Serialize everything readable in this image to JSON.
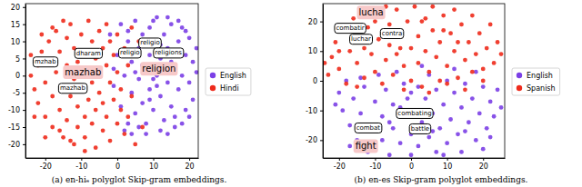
{
  "chart_data": [
    {
      "type": "scatter",
      "title": "(a) en-hiₑ polyglot Skip-gram embeddings.",
      "legend": "right",
      "xlim": [
        -25.5,
        22.5
      ],
      "xticks": [
        -20,
        -10,
        0,
        10,
        20
      ],
      "ylim": [
        -24,
        21
      ],
      "yticks": [
        -20,
        -15,
        -10,
        -5,
        0,
        5,
        10,
        15,
        20
      ],
      "series": [
        {
          "name": "English",
          "color": "#7b3fe6",
          "x": [
            -2,
            -1,
            0,
            1,
            1,
            2,
            3,
            3,
            4,
            4,
            5,
            5,
            6,
            6,
            7,
            7,
            8,
            8,
            9,
            9,
            9,
            10,
            10,
            11,
            11,
            12,
            12,
            13,
            13,
            14,
            14,
            15,
            15,
            16,
            16,
            17,
            17,
            18,
            18,
            19,
            19,
            20,
            20,
            21,
            21,
            22,
            8,
            12,
            16,
            18,
            2,
            6,
            10,
            14,
            3,
            20,
            13,
            10,
            15,
            7,
            17,
            19,
            -1,
            5,
            11,
            22,
            4,
            14,
            9,
            12
          ],
          "values": [
            12,
            -3,
            6,
            15,
            -9,
            0,
            10,
            -14,
            4,
            -5,
            16,
            -11,
            8,
            -1,
            12,
            -8,
            2,
            -14,
            14,
            6,
            -4,
            -10,
            10,
            0,
            17,
            -6,
            5,
            -13,
            12,
            -2,
            8,
            15,
            -9,
            3,
            -15,
            10,
            -4,
            0,
            14,
            -10,
            6,
            -2,
            11,
            4,
            -7,
            1,
            -17,
            -16,
            -12,
            -14,
            -16,
            -15,
            16,
            17,
            13,
            -12,
            1,
            -1,
            4,
            3,
            16,
            13,
            2,
            1,
            -3,
            8,
            -17,
            -17,
            -7,
            9
          ]
        },
        {
          "name": "Hindi",
          "color": "#ee2a1b",
          "x": [
            -24,
            -23,
            -22,
            -22,
            -21,
            -20,
            -20,
            -19,
            -19,
            -18,
            -18,
            -17,
            -17,
            -16,
            -16,
            -15,
            -15,
            -14,
            -14,
            -14,
            -13,
            -13,
            -12,
            -12,
            -12,
            -11,
            -11,
            -11,
            -10,
            -10,
            -10,
            -9,
            -9,
            -9,
            -8,
            -8,
            -8,
            -7,
            -7,
            -7,
            -6,
            -6,
            -6,
            -5,
            -5,
            -5,
            -4,
            -4,
            -4,
            -3,
            -3,
            -3,
            -2,
            -2,
            -2,
            -1,
            -1,
            0,
            0,
            0,
            1,
            1,
            2,
            2,
            3,
            3,
            4,
            4,
            5,
            6,
            -23,
            -21,
            -16,
            -13,
            -18,
            -9,
            -20,
            -24,
            7,
            -15
          ],
          "values": [
            0,
            -4,
            3,
            -8,
            7,
            -2,
            -12,
            4,
            10,
            -6,
            -15,
            1,
            13,
            -10,
            7,
            -3,
            -18,
            11,
            3,
            -13,
            -6,
            15,
            -1,
            -20,
            8,
            -9,
            4,
            -15,
            12,
            -4,
            0,
            -12,
            6,
            -18,
            16,
            -7,
            2,
            10,
            -2,
            -14,
            5,
            -10,
            -21,
            13,
            -5,
            1,
            8,
            -16,
            -8,
            15,
            3,
            -12,
            -2,
            10,
            -19,
            6,
            -7,
            -14,
            12,
            1,
            -4,
            -10,
            8,
            -17,
            3,
            -12,
            14,
            -6,
            -20,
            10,
            -12,
            12,
            -16,
            -19,
            14,
            -22,
            -18,
            6,
            -15,
            16
          ]
        }
      ],
      "annotations": [
        {
          "text": "mzhab",
          "x": -20,
          "y": 4
        },
        {
          "text": "dharam",
          "x": -8,
          "y": 6.5
        },
        {
          "text": "mazhab",
          "x": -9.5,
          "y": 1,
          "color": "#f7c9c9"
        },
        {
          "text": "mazhab",
          "x": -12.4,
          "y": -3.7
        },
        {
          "text": "religio",
          "x": 9.1,
          "y": 9.5
        },
        {
          "text": "religio",
          "x": 3.5,
          "y": 6.6
        },
        {
          "text": "religions",
          "x": 14.2,
          "y": 6.6
        },
        {
          "text": "religion",
          "x": 11.6,
          "y": 2,
          "color": "#f7c9c9"
        }
      ]
    },
    {
      "type": "scatter",
      "title": "(b) en-es Skip-gram polyglot embeddings.",
      "legend": "right",
      "xlim": [
        -24.5,
        26
      ],
      "xticks": [
        -20,
        -10,
        0,
        10,
        20
      ],
      "ylim": [
        -26,
        26
      ],
      "yticks": [
        -20,
        -10,
        0,
        10,
        20
      ],
      "series": [
        {
          "name": "English",
          "color": "#7b3fe6",
          "x": [
            -20,
            -19,
            -18,
            -17,
            -16,
            -15,
            -14,
            -13,
            -12,
            -11,
            -10,
            -9,
            -8,
            -8,
            -7,
            -6,
            -5,
            -5,
            -4,
            -3,
            -2,
            -2,
            -1,
            0,
            0,
            1,
            2,
            2,
            3,
            4,
            5,
            5,
            6,
            7,
            7,
            8,
            9,
            10,
            10,
            11,
            12,
            13,
            14,
            14,
            15,
            16,
            17,
            18,
            19,
            20,
            21,
            22,
            23,
            24,
            25,
            -17,
            -21,
            3,
            12,
            18,
            -11,
            6,
            -6,
            20,
            0,
            9,
            -14,
            15,
            22,
            -3
          ],
          "values": [
            -4,
            -10,
            0,
            -15,
            -6,
            -20,
            -11,
            -2,
            -24,
            -16,
            -7,
            2,
            -20,
            -12,
            -3,
            -25,
            -16,
            -8,
            3,
            -21,
            -12,
            -1,
            -6,
            -18,
            -25,
            -10,
            -2,
            -22,
            -14,
            -6,
            -19,
            2,
            -11,
            -24,
            -3,
            -16,
            -8,
            -21,
            0,
            -13,
            -4,
            -18,
            -9,
            -24,
            -1,
            -14,
            -6,
            -20,
            -11,
            -2,
            -16,
            -7,
            -12,
            -3,
            -9,
            -22,
            -8,
            5,
            4,
            3,
            -23,
            -17,
            -14,
            -23,
            -4,
            -25,
            1,
            -17,
            -19,
            -9
          ]
        },
        {
          "name": "Spanish",
          "color": "#ee2a1b",
          "x": [
            -23,
            -22,
            -21,
            -20,
            -19,
            -18,
            -17,
            -16,
            -15,
            -14,
            -13,
            -12,
            -12,
            -11,
            -10,
            -9,
            -9,
            -8,
            -7,
            -6,
            -6,
            -5,
            -4,
            -4,
            -3,
            -2,
            -1,
            0,
            0,
            1,
            2,
            2,
            3,
            4,
            4,
            5,
            6,
            6,
            7,
            8,
            8,
            9,
            10,
            11,
            12,
            12,
            13,
            14,
            15,
            16,
            17,
            17,
            18,
            19,
            20,
            21,
            22,
            23,
            24,
            25,
            -20,
            -15,
            -10,
            -2,
            5,
            10,
            15,
            20,
            -24,
            3,
            -7,
            13,
            -13,
            9,
            -3
          ],
          "values": [
            2,
            8,
            13,
            4,
            17,
            -1,
            10,
            21,
            6,
            14,
            1,
            18,
            24,
            9,
            3,
            14,
            22,
            -1,
            7,
            19,
            12,
            2,
            24,
            9,
            16,
            5,
            20,
            11,
            0,
            25,
            15,
            6,
            -2,
            21,
            10,
            3,
            17,
            25,
            8,
            13,
            0,
            22,
            5,
            16,
            10,
            24,
            1,
            19,
            7,
            13,
            22,
            3,
            9,
            16,
            4,
            11,
            19,
            6,
            13,
            9,
            10,
            -2,
            20,
            -3,
            -4,
            -1,
            -3,
            0,
            6,
            20,
            25,
            13,
            11,
            17,
            11
          ]
        }
      ],
      "annotations": [
        {
          "text": "lucha",
          "x": -11.1,
          "y": 23,
          "color": "#f7c9c9"
        },
        {
          "text": "combatir",
          "x": -16.9,
          "y": 17.7
        },
        {
          "text": "luchar",
          "x": -13.9,
          "y": 14
        },
        {
          "text": "contra",
          "x": -5.3,
          "y": 15.9
        },
        {
          "text": "combating",
          "x": 1,
          "y": -11
        },
        {
          "text": "combat",
          "x": -11.9,
          "y": -15.9
        },
        {
          "text": "battle",
          "x": 2.5,
          "y": -16.2
        },
        {
          "text": "fight",
          "x": -12.6,
          "y": -22,
          "color": "#f7c9c9"
        }
      ]
    }
  ]
}
